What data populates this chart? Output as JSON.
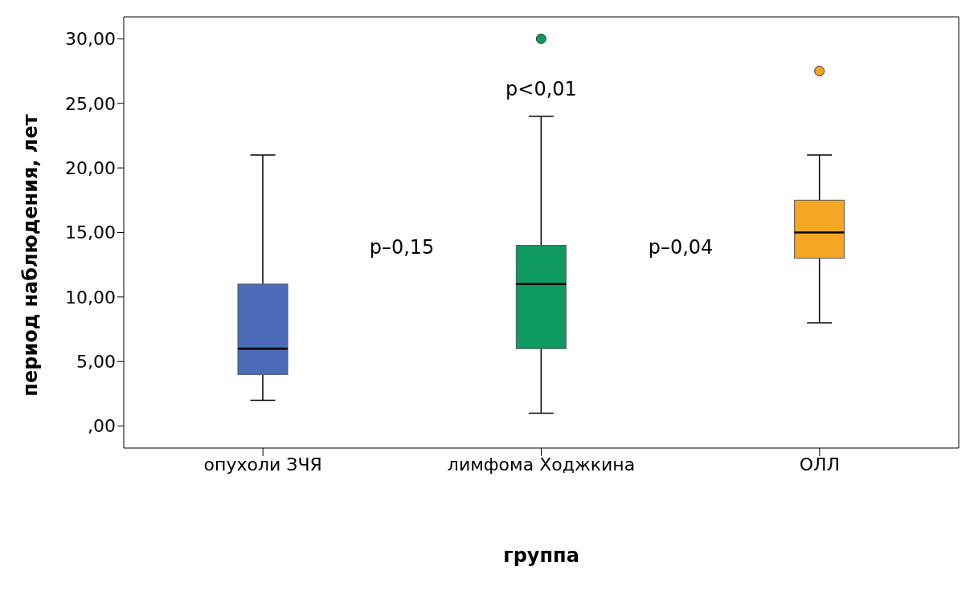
{
  "chart_data": {
    "type": "box",
    "xlabel": "группа",
    "ylabel": "период наблюдения, лет",
    "categories": [
      "опухоли ЗЧЯ",
      "лимфома Ходжкина",
      "ОЛЛ"
    ],
    "colors": [
      "#4a6bb8",
      "#0e9a61",
      "#f5a623"
    ],
    "boxes": [
      {
        "low": 2,
        "q1": 4,
        "median": 6,
        "q3": 11,
        "high": 21
      },
      {
        "low": 1,
        "q1": 6,
        "median": 11,
        "q3": 14,
        "high": 24,
        "outliers": [
          30
        ]
      },
      {
        "low": 8,
        "q1": 13,
        "median": 15,
        "q3": 17.5,
        "high": 21,
        "outliers": [
          27.5
        ]
      }
    ],
    "ylim": [
      -1.7,
      31.7
    ],
    "yticks": [
      {
        "value": 0,
        "label": ",00"
      },
      {
        "value": 5,
        "label": "5,00"
      },
      {
        "value": 10,
        "label": "10,00"
      },
      {
        "value": 15,
        "label": "15,00"
      },
      {
        "value": 20,
        "label": "20,00"
      },
      {
        "value": 25,
        "label": "25,00"
      },
      {
        "value": 30,
        "label": "30,00"
      }
    ],
    "annotations": [
      "p–0,15",
      "p<0,01",
      "p–0,04"
    ],
    "grid": false,
    "legend": false
  }
}
